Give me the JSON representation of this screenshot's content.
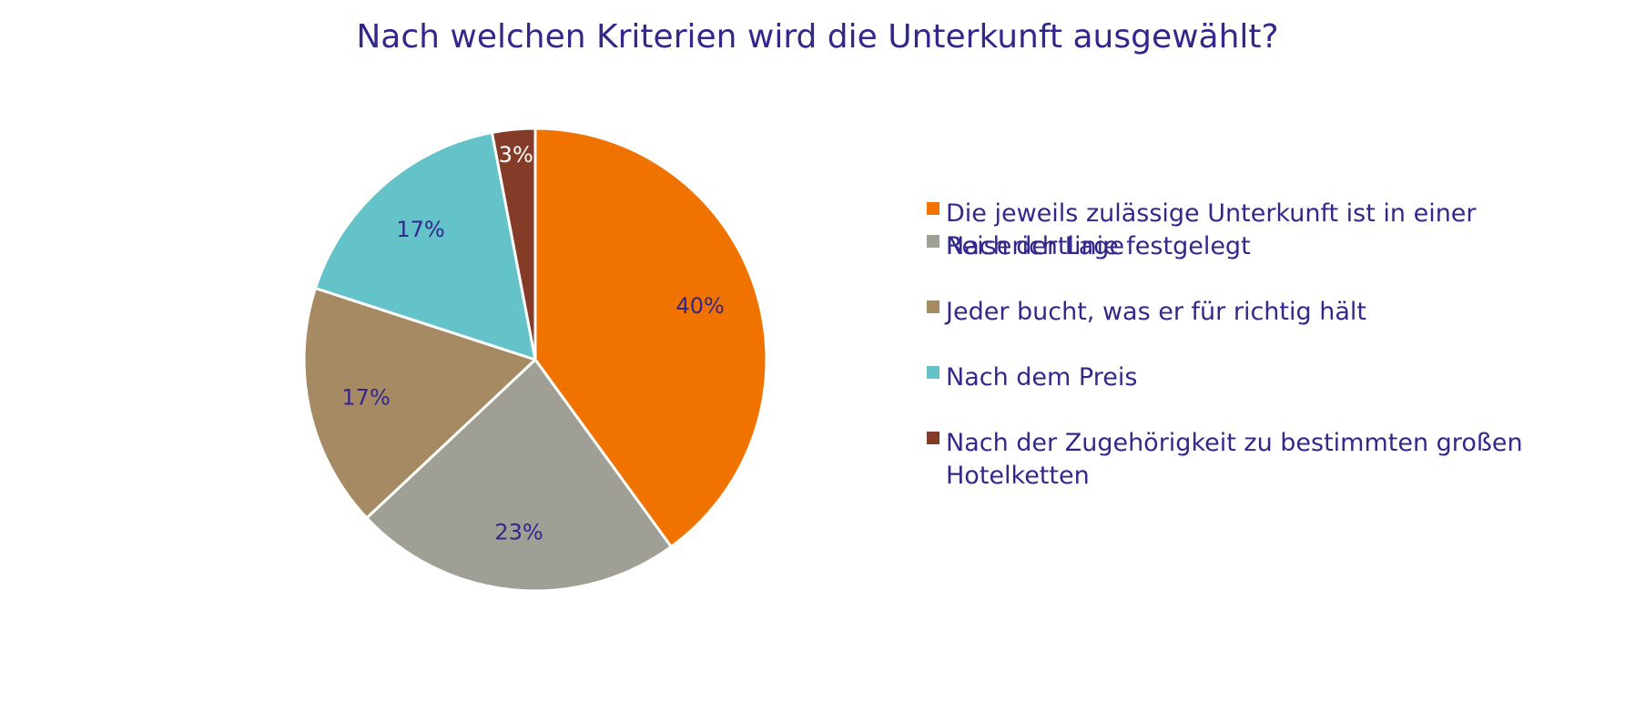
{
  "chart_data": {
    "type": "pie",
    "title": "Nach welchen Kriterien wird die Unterkunft ausgewählt?",
    "legend_position": "right",
    "start_angle_deg": 0,
    "direction": "clockwise",
    "slices": [
      {
        "label": "Die jeweils zulässige Unterkunft ist in einer Reiserichtlinie festgelegt",
        "legend_lines": [
          "Die jeweils zulässige Unterkunft ist in einer",
          "Reiserichtlinie festgelegt"
        ],
        "value": 40,
        "display": "40%",
        "color": "#f07300",
        "label_color": "#32288c"
      },
      {
        "label": "Nach der Lage",
        "legend_lines": [
          "Nach der Lage"
        ],
        "value": 23,
        "display": "23%",
        "color": "#a09f96",
        "label_color": "#32288c"
      },
      {
        "label": "Jeder bucht, was er für richtig hält",
        "legend_lines": [
          "Jeder bucht, was er für richtig hält"
        ],
        "value": 17,
        "display": "17%",
        "color": "#a58a63",
        "label_color": "#32288c"
      },
      {
        "label": "Nach dem Preis",
        "legend_lines": [
          "Nach dem Preis"
        ],
        "value": 17,
        "display": "17%",
        "color": "#63c3c8",
        "label_color": "#32288c"
      },
      {
        "label": "Nach der Zugehörigkeit zu bestimmten großen Hotelketten",
        "legend_lines": [
          "Nach der Zugehörigkeit zu bestimmten großen",
          "Hotelketten"
        ],
        "value": 3,
        "display": "3%",
        "color": "#843c28",
        "label_color": "#ffffff"
      }
    ]
  }
}
